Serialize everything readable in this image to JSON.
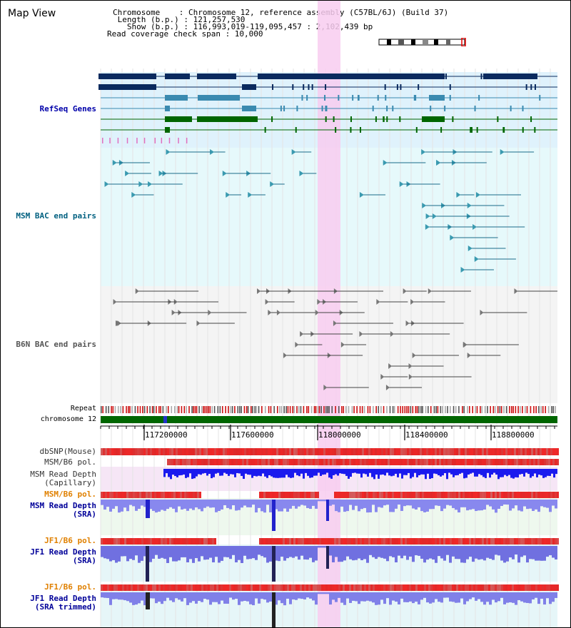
{
  "header": {
    "title": "Map View",
    "chromosome_line": "Chromosome    : Chromosome 12, reference assembly (C57BL/6J) (Build 37)",
    "length_line": " Length (b.p.) : 121,257,530",
    "show_line": "   Show (b.p.) : 116,993,019-119,095,457 : 2,102,439 bp",
    "coverage_line": "Read coverage check span : 10,000"
  },
  "tracks": {
    "refseq": "RefSeq Genes",
    "msm_bac": "MSM BAC end pairs",
    "b6n_bac": "B6N BAC end pairs",
    "repeat": "Repeat",
    "chromosome": "chromosome 12",
    "dbsnp": "dbSNP(Mouse)",
    "msm_b6_pol_1": "MSM/B6 pol.",
    "msm_depth_cap": "MSM Read Depth\n(Capillary)",
    "msm_b6_pol_2": "MSM/B6 pol.",
    "msm_depth_sra": "MSM Read Depth\n(SRA)",
    "jf1_b6_pol_1": "JF1/B6 pol.",
    "jf1_depth_sra": "JF1 Read Depth\n(SRA)",
    "jf1_b6_pol_2": "JF1/B6 pol.",
    "jf1_depth_trim": "JF1 Read Depth\n(SRA trimmed)"
  },
  "ruler": {
    "ticks": [
      "117200000",
      "117600000",
      "118000000",
      "118400000",
      "118800000"
    ]
  },
  "colors": {
    "refseq_label": "#0000aa",
    "msm_bac_label": "#006080",
    "b6n_bac_label": "#555555",
    "pol_orange": "#e08000",
    "depth_blue": "#000099",
    "highlight": "#f8ccf0",
    "refseq_bg": "#dff2fc",
    "bac_bg": "#e6f9fb",
    "gray_bg": "#f4f4f4",
    "chromosome_green": "#006600"
  }
}
